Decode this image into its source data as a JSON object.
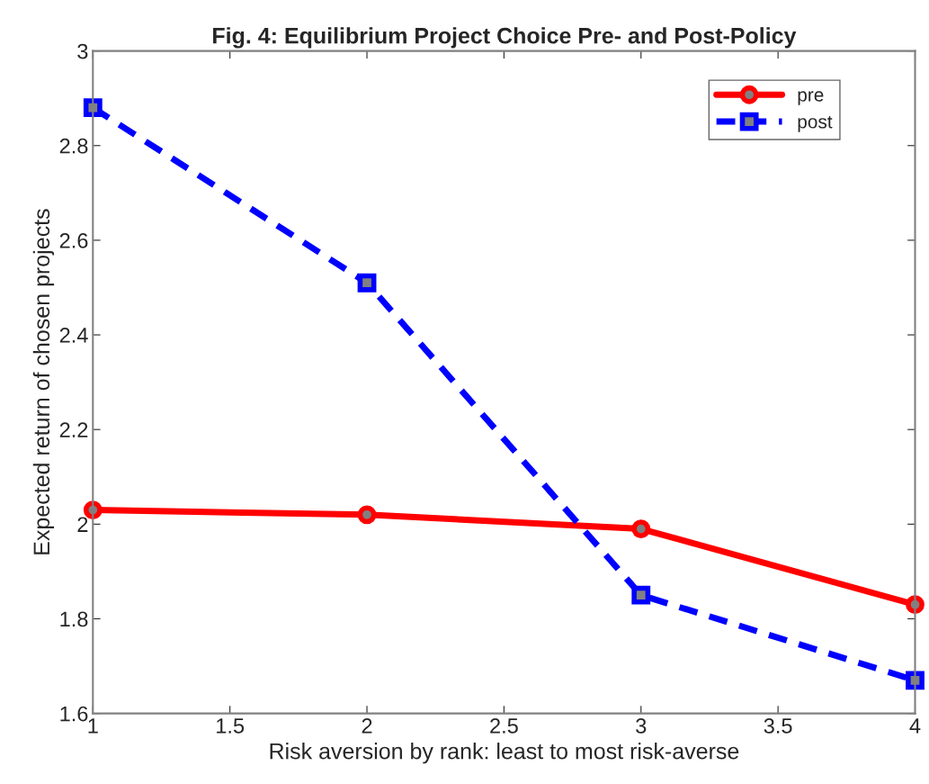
{
  "chart_data": {
    "type": "line",
    "title": "Fig. 4: Equilibrium Project Choice Pre- and Post-Policy",
    "xlabel": "Risk aversion by rank: least to most risk-averse",
    "ylabel": "Expected return of chosen projects",
    "x": [
      1,
      2,
      3,
      4
    ],
    "series": [
      {
        "name": "pre",
        "color": "#ff0000",
        "values": [
          2.03,
          2.02,
          1.99,
          1.83
        ],
        "marker": "circle",
        "line_style": "solid"
      },
      {
        "name": "post",
        "color": "#0000ff",
        "values": [
          2.88,
          2.51,
          1.85,
          1.67
        ],
        "marker": "square",
        "line_style": "dashed"
      }
    ],
    "xlim": [
      1,
      4
    ],
    "xticks": [
      1,
      1.5,
      2,
      2.5,
      3,
      3.5,
      4
    ],
    "ylim": [
      1.6,
      3
    ],
    "yticks": [
      1.6,
      1.8,
      2,
      2.2,
      2.4,
      2.6,
      2.8,
      3
    ],
    "grid": false,
    "legend": "top right"
  }
}
